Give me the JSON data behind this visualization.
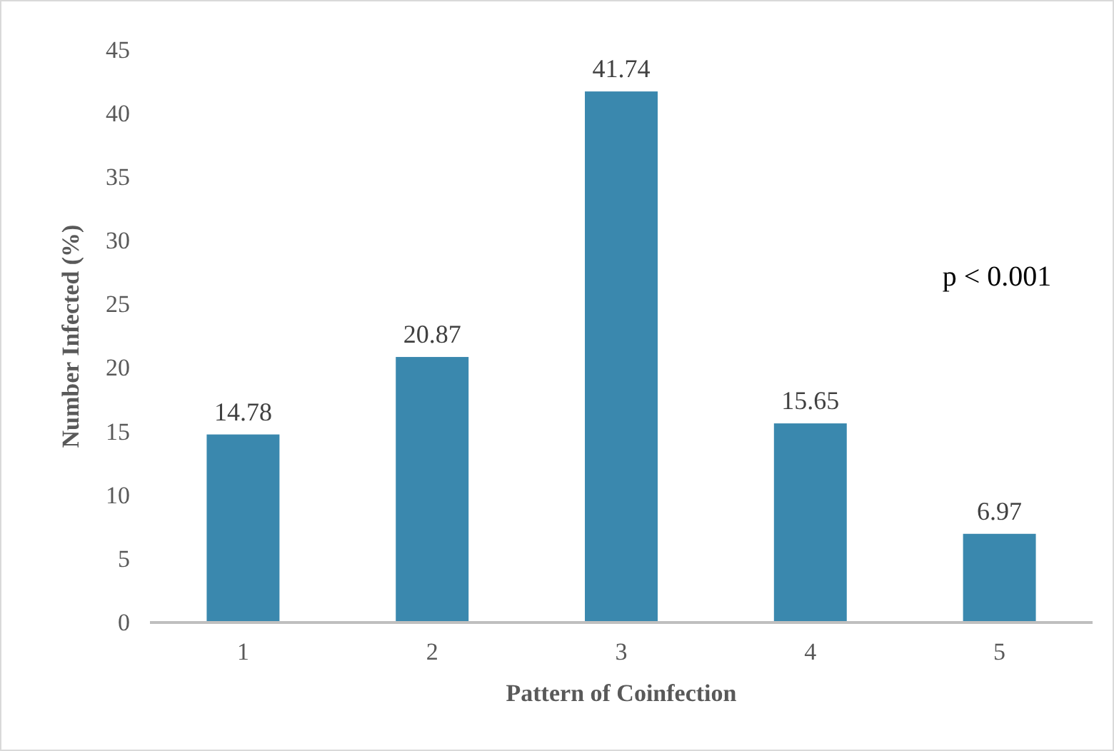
{
  "chart_data": {
    "type": "bar",
    "xlabel": "Pattern of Coinfection",
    "ylabel": "Number Infected (%)",
    "categories": [
      "1",
      "2",
      "3",
      "4",
      "5"
    ],
    "values": [
      14.78,
      20.87,
      41.74,
      15.65,
      6.97
    ],
    "color": "#3a88ae",
    "ylim": [
      0,
      45
    ],
    "yticks": [
      0,
      5,
      10,
      15,
      20,
      25,
      30,
      35,
      40,
      45
    ],
    "grid": false,
    "data_labels": true,
    "annotations": [
      "p < 0.001"
    ]
  }
}
